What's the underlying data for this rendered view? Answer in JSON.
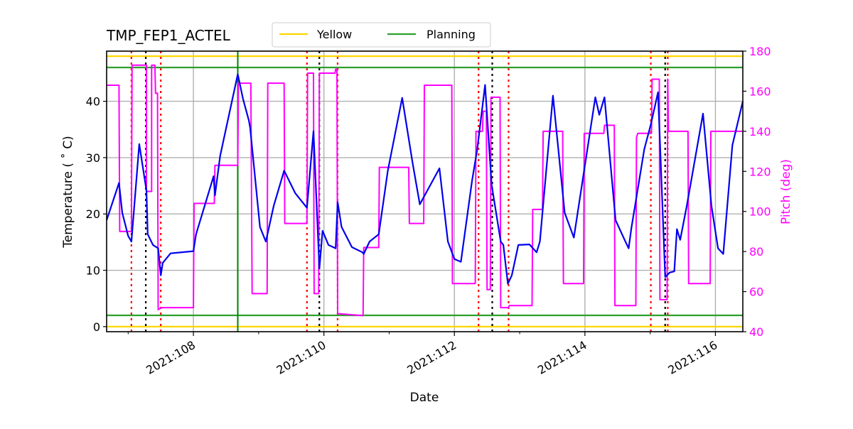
{
  "chart_data": {
    "type": "line",
    "title": "TMP_FEP1_ACTEL",
    "xlabel": "Date",
    "ylabel": "Temperature ($^\\circ$C)",
    "ylabel_display": "Temperature ( ˚ C)",
    "y2label": "Pitch (deg)",
    "xlim": [
      106.67,
      116.42
    ],
    "ylim": [
      -0.9,
      48.9
    ],
    "y2lim": [
      40,
      180
    ],
    "grid": true,
    "legend_position": "upper center (above plot)",
    "x_ticks": [
      108,
      110,
      112,
      114,
      116
    ],
    "x_tick_labels": [
      "2021:108",
      "2021:110",
      "2021:112",
      "2021:114",
      "2021:116"
    ],
    "x_minor_ticks": [
      107,
      109,
      111,
      113,
      115
    ],
    "y_ticks": [
      0,
      10,
      20,
      30,
      40
    ],
    "y_tick_labels": [
      "0",
      "10",
      "20",
      "30",
      "40"
    ],
    "y2_ticks": [
      40,
      60,
      80,
      100,
      120,
      140,
      160,
      180
    ],
    "y2_tick_labels": [
      "40",
      "60",
      "80",
      "100",
      "120",
      "140",
      "160",
      "180"
    ],
    "legend": [
      {
        "label": "Yellow",
        "color": "#ffd700"
      },
      {
        "label": "Planning",
        "color": "#2ca02c"
      }
    ],
    "limit_lines": [
      {
        "name": "yellow-high",
        "value": 48,
        "color": "#ffd700"
      },
      {
        "name": "planning-high",
        "value": 46,
        "color": "#2ca02c"
      },
      {
        "name": "planning-low",
        "value": 2,
        "color": "#2ca02c"
      },
      {
        "name": "yellow-low",
        "value": 0,
        "color": "#ffd700"
      }
    ],
    "vertical_markers": {
      "red_dotted": [
        107.05,
        107.5,
        109.74,
        110.21,
        112.37,
        112.83,
        115.01,
        115.27
      ],
      "black_dotted": [
        107.27,
        109.93,
        112.58,
        115.23
      ],
      "green_solid": [
        108.68
      ]
    },
    "series": [
      {
        "name": "TMP_FEP1_ACTEL",
        "axis": "left",
        "color": "#0000ee",
        "x": [
          106.67,
          106.86,
          106.91,
          107.0,
          107.05,
          107.17,
          107.28,
          107.3,
          107.38,
          107.46,
          107.5,
          107.53,
          107.65,
          108.0,
          108.04,
          108.31,
          108.33,
          108.41,
          108.68,
          108.76,
          108.85,
          108.87,
          109.02,
          109.11,
          109.23,
          109.39,
          109.56,
          109.74,
          109.84,
          109.93,
          109.98,
          110.07,
          110.18,
          110.21,
          110.27,
          110.43,
          110.59,
          110.61,
          110.7,
          110.84,
          110.98,
          111.2,
          111.36,
          111.47,
          111.77,
          111.9,
          112.0,
          112.1,
          112.27,
          112.35,
          112.47,
          112.57,
          112.71,
          112.75,
          112.82,
          112.88,
          112.98,
          113.15,
          113.26,
          113.31,
          113.51,
          113.69,
          113.83,
          114.16,
          114.22,
          114.3,
          114.47,
          114.62,
          114.67,
          114.71,
          114.91,
          115.01,
          115.12,
          115.23,
          115.3,
          115.37,
          115.41,
          115.46,
          115.56,
          115.81,
          115.94,
          116.04,
          116.12,
          116.26,
          116.42
        ],
        "values": [
          18.9,
          25.5,
          20.2,
          16.1,
          15.1,
          32.4,
          24.2,
          16.4,
          14.5,
          13.9,
          9.1,
          11.3,
          13.0,
          13.4,
          16.4,
          26.7,
          23.3,
          30.3,
          44.8,
          40.4,
          36.6,
          35.3,
          17.7,
          15.1,
          21.4,
          27.7,
          23.7,
          21.1,
          34.7,
          10.3,
          17.0,
          14.5,
          13.9,
          22.1,
          17.7,
          14.1,
          13.2,
          12.9,
          15.1,
          16.4,
          27.7,
          40.6,
          29.0,
          21.7,
          28.1,
          15.1,
          12.0,
          11.5,
          25.9,
          31.5,
          42.9,
          25.2,
          15.1,
          14.5,
          7.6,
          9.1,
          14.5,
          14.6,
          13.2,
          15.1,
          41.0,
          20.2,
          15.8,
          40.7,
          37.6,
          40.7,
          18.9,
          15.1,
          13.9,
          17.3,
          31.5,
          35.9,
          41.6,
          8.8,
          9.6,
          9.8,
          17.3,
          15.4,
          21.4,
          37.8,
          21.4,
          13.9,
          12.9,
          32.2,
          40.0
        ]
      },
      {
        "name": "Pitch",
        "axis": "right",
        "color": "#ff00ff",
        "x": [
          106.67,
          106.86,
          106.87,
          107.05,
          107.06,
          107.28,
          107.28,
          107.36,
          107.36,
          107.41,
          107.42,
          107.45,
          107.46,
          107.51,
          107.65,
          108.0,
          108.01,
          108.32,
          108.33,
          108.68,
          108.69,
          108.88,
          108.9,
          109.13,
          109.14,
          109.39,
          109.4,
          109.74,
          109.75,
          109.84,
          109.85,
          109.92,
          109.93,
          110.17,
          110.18,
          110.2,
          110.21,
          110.22,
          110.6,
          110.61,
          110.84,
          110.85,
          111.3,
          111.31,
          111.53,
          111.54,
          111.96,
          111.97,
          112.32,
          112.33,
          112.43,
          112.44,
          112.49,
          112.5,
          112.55,
          112.56,
          112.7,
          112.71,
          112.83,
          112.84,
          113.19,
          113.2,
          113.35,
          113.36,
          113.66,
          113.67,
          113.98,
          113.99,
          114.29,
          114.3,
          114.45,
          114.46,
          114.78,
          114.79,
          114.8,
          114.81,
          115.02,
          115.03,
          115.14,
          115.15,
          115.26,
          115.27,
          115.28,
          115.58,
          115.59,
          115.92,
          115.93,
          116.42
        ],
        "values": [
          163,
          163,
          90,
          90,
          173,
          173,
          110,
          110,
          173,
          173,
          159,
          159,
          51,
          52,
          52,
          52,
          104,
          104,
          123,
          123,
          164,
          164,
          59,
          59,
          164,
          164,
          94,
          94,
          169,
          169,
          59,
          59,
          169,
          169,
          171,
          171,
          49,
          49,
          48,
          82,
          82,
          122,
          122,
          94,
          94,
          163,
          163,
          64,
          64,
          140,
          140,
          150,
          150,
          61,
          61,
          157,
          157,
          52,
          52,
          53,
          53,
          101,
          101,
          140,
          140,
          64,
          64,
          139,
          139,
          143,
          143,
          53,
          53,
          137,
          138,
          139,
          139,
          166,
          166,
          56,
          56,
          166,
          140,
          140,
          64,
          64,
          140,
          140
        ]
      }
    ]
  },
  "legend": {
    "items": [
      {
        "label": "Yellow",
        "color": "#ffd700"
      },
      {
        "label": "Planning",
        "color": "#2ca02c"
      }
    ]
  },
  "colors": {
    "temperature": "#0000ee",
    "pitch": "#ff00ff",
    "yellow_limit": "#ffd700",
    "planning_limit": "#2ca02c",
    "green_vertical": "#008000",
    "red_marker": "#ff0000",
    "black_marker": "#000000",
    "grid": "#b0b0b0",
    "right_axis": "#ff00ff"
  }
}
